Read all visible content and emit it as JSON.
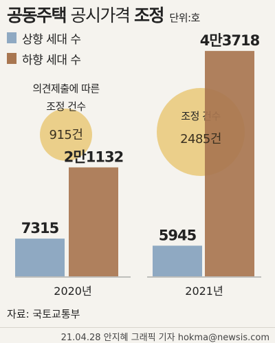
{
  "title": {
    "part1": "공동주택",
    "part2": "공시가격",
    "part3": "조정",
    "unit": "단위:호"
  },
  "legend": [
    {
      "name": "상향 세대 수",
      "color": "#8fa9c2"
    },
    {
      "name": "하향 세대 수",
      "color": "#a87650"
    }
  ],
  "chart_data": {
    "type": "bar",
    "categories": [
      "2020년",
      "2021년"
    ],
    "series": [
      {
        "name": "상향 세대 수",
        "values": [
          7315,
          5945
        ],
        "labels": [
          "7315",
          "5945"
        ],
        "color": "#8fa9c2"
      },
      {
        "name": "하향 세대 수",
        "values": [
          21132,
          43718
        ],
        "labels": [
          "2만1132",
          "4만3718"
        ],
        "color": "#a87650"
      }
    ],
    "bubbles": [
      {
        "category": "2020년",
        "caption": [
          "의견제출에 따른",
          "조정 건수"
        ],
        "value": 915,
        "label": "915건"
      },
      {
        "category": "2021년",
        "caption": [
          "조정 건수"
        ],
        "value": 2485,
        "label": "2485건"
      }
    ],
    "bubble_color": "#e9c878"
  },
  "source": "자료: 국토교통부",
  "credit": "21.04.28 안지혜 그래픽 기자  hokma@newsis.com"
}
